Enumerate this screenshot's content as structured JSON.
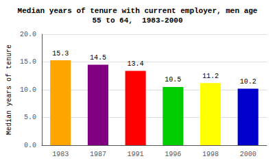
{
  "chart_data": {
    "type": "bar",
    "title": "Median years of tenure with current employer, men age\n55 to 64,  1983-2000",
    "ylabel": "Median years of tenure",
    "categories": [
      "1983",
      "1987",
      "1991",
      "1996",
      "1998",
      "2000"
    ],
    "values": [
      15.3,
      14.5,
      13.4,
      10.5,
      11.2,
      10.2
    ],
    "colors": [
      "#FFA500",
      "#800080",
      "#FF0000",
      "#00CC00",
      "#FFFF00",
      "#0000CC"
    ],
    "ylim": [
      0.0,
      20.0
    ],
    "yticks": [
      {
        "value": 0,
        "label": "0.0"
      },
      {
        "value": 5,
        "label": "5.0"
      },
      {
        "value": 10,
        "label": "10.0"
      },
      {
        "value": 15,
        "label": "15.0"
      },
      {
        "value": 20,
        "label": "20.0"
      }
    ],
    "grid": true,
    "data_labels": true
  }
}
